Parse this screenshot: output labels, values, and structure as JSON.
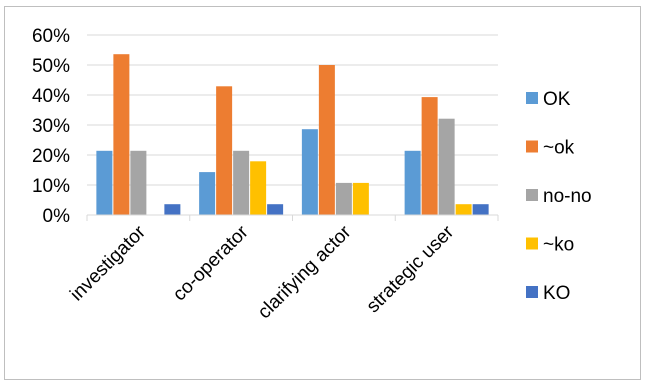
{
  "chart_data": {
    "type": "bar",
    "categories": [
      "investigator",
      "co-operator",
      "clarifying actor",
      "strategic user"
    ],
    "series": [
      {
        "name": "OK",
        "color": "#5b9bd5",
        "values": [
          21.4,
          14.3,
          28.6,
          21.4
        ]
      },
      {
        "name": "~ok",
        "color": "#ed7d31",
        "values": [
          53.6,
          42.9,
          50.0,
          39.3
        ]
      },
      {
        "name": "no-no",
        "color": "#a5a5a5",
        "values": [
          21.4,
          21.4,
          10.7,
          32.1
        ]
      },
      {
        "name": "~ko",
        "color": "#ffc000",
        "values": [
          0,
          17.9,
          10.7,
          3.6
        ]
      },
      {
        "name": "KO",
        "color": "#4472c4",
        "values": [
          3.6,
          3.6,
          0,
          3.6
        ]
      }
    ],
    "ylim": [
      0,
      60
    ],
    "y_ticks": [
      "0%",
      "10%",
      "20%",
      "30%",
      "40%",
      "50%",
      "60%"
    ],
    "y_tick_values": [
      0,
      10,
      20,
      30,
      40,
      50,
      60
    ],
    "grid": true,
    "legend_position": "right",
    "title": "",
    "xlabel": "",
    "ylabel": ""
  }
}
